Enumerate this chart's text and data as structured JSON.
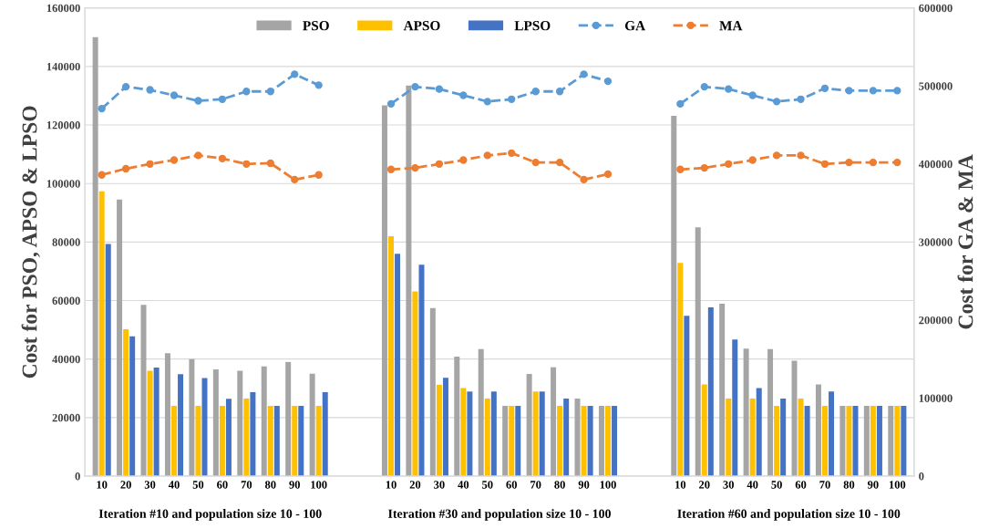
{
  "chart_data": {
    "type": "bar",
    "ylabel": "Cost for PSO, APSO & LPSO",
    "y2label": "Cost for GA & MA",
    "categories": [
      "10",
      "20",
      "30",
      "40",
      "50",
      "60",
      "70",
      "80",
      "90",
      "100",
      null,
      null,
      "10",
      "20",
      "30",
      "40",
      "50",
      "60",
      "70",
      "80",
      "90",
      "100",
      null,
      null,
      "10",
      "20",
      "30",
      "40",
      "50",
      "60",
      "70",
      "80",
      "90",
      "100"
    ],
    "series": [
      {
        "name": "PSO",
        "color": "#a5a5a5",
        "values": [
          150000,
          94500,
          58500,
          42000,
          40000,
          36500,
          36000,
          37500,
          39000,
          35000,
          null,
          null,
          126700,
          133500,
          57400,
          40800,
          43400,
          24000,
          34900,
          37200,
          26500,
          24000,
          null,
          null,
          123100,
          85000,
          58900,
          43600,
          43400,
          39400,
          31300,
          24000,
          24000,
          24000
        ]
      },
      {
        "name": "APSO",
        "color": "#ffc000",
        "values": [
          97300,
          50200,
          36000,
          24000,
          24000,
          24000,
          26500,
          24000,
          24000,
          24000,
          null,
          null,
          82000,
          63100,
          31200,
          30100,
          26500,
          24000,
          28900,
          24000,
          24000,
          24000,
          null,
          null,
          72900,
          31300,
          26500,
          26500,
          24000,
          26500,
          24000,
          24000,
          24000,
          24000
        ]
      },
      {
        "name": "LPSO",
        "color": "#4472c4",
        "values": [
          79300,
          47800,
          37100,
          34800,
          33500,
          26400,
          28700,
          24000,
          24000,
          28700,
          null,
          null,
          76000,
          72200,
          33600,
          28900,
          28900,
          24000,
          28900,
          26500,
          24000,
          24000,
          null,
          null,
          54800,
          57700,
          46700,
          30100,
          26500,
          24000,
          28900,
          24000,
          24000,
          24000
        ]
      },
      {
        "name": "GA",
        "type": "line",
        "axis": "y2",
        "color": "#5b9bd5",
        "values": [
          471000,
          499000,
          495000,
          488000,
          481000,
          483000,
          493000,
          493000,
          515000,
          501000,
          null,
          null,
          477000,
          499000,
          496000,
          488000,
          480000,
          483000,
          493000,
          493000,
          515000,
          506000,
          null,
          null,
          477000,
          499000,
          496000,
          488000,
          480000,
          483000,
          497000,
          494000,
          494000,
          494000
        ]
      },
      {
        "name": "MA",
        "type": "line",
        "axis": "y2",
        "color": "#ed7d31",
        "values": [
          386000,
          394000,
          400000,
          405000,
          411000,
          407000,
          400000,
          401000,
          380000,
          386000,
          null,
          null,
          393000,
          395000,
          400000,
          405000,
          411000,
          414000,
          402000,
          402000,
          380000,
          387000,
          null,
          null,
          393000,
          395000,
          400000,
          405000,
          411000,
          411000,
          400000,
          402000,
          402000,
          402000
        ]
      }
    ],
    "ylim": [
      0,
      160000
    ],
    "yticks": [
      0,
      20000,
      40000,
      60000,
      80000,
      100000,
      120000,
      140000,
      160000
    ],
    "y2lim": [
      0,
      600000
    ],
    "y2ticks": [
      0,
      100000,
      200000,
      300000,
      400000,
      500000,
      600000
    ],
    "grid": "y",
    "legend": "top",
    "marker": "circle",
    "line_style": "dashed",
    "annotations": [
      "Iteration #10 and population size 10 - 100",
      "Iteration #30 and population size 10 - 100",
      "Iteration #60 and population size 10 - 100"
    ]
  }
}
